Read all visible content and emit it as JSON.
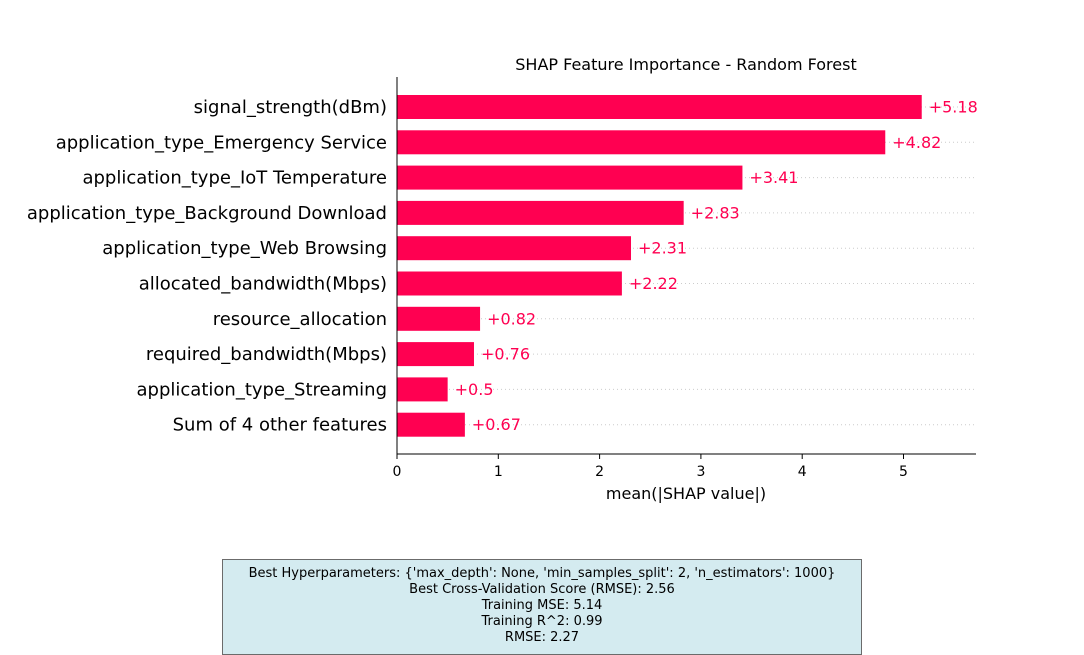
{
  "chart_data": {
    "type": "bar",
    "orientation": "horizontal",
    "title": "SHAP Feature Importance - Random Forest",
    "xlabel": "mean(|SHAP value|)",
    "ylabel": "",
    "xlim": [
      0,
      5.7
    ],
    "xticks": [
      0,
      1,
      2,
      3,
      4,
      5
    ],
    "grid": "dotted row guides",
    "bar_color": "#ff0051",
    "label_color": "#ff0051",
    "categories": [
      "signal_strength(dBm)",
      "application_type_Emergency Service",
      "application_type_IoT Temperature",
      "application_type_Background Download",
      "application_type_Web Browsing",
      "allocated_bandwidth(Mbps)",
      "resource_allocation",
      "required_bandwidth(Mbps)",
      "application_type_Streaming",
      "Sum of 4 other features"
    ],
    "values": [
      5.18,
      4.82,
      3.41,
      2.83,
      2.31,
      2.22,
      0.82,
      0.76,
      0.5,
      0.67
    ],
    "value_labels": [
      "+5.18",
      "+4.82",
      "+3.41",
      "+2.83",
      "+2.31",
      "+2.22",
      "+0.82",
      "+0.76",
      "+0.5",
      "+0.67"
    ]
  },
  "info_box": {
    "lines": [
      "Best Hyperparameters: {'max_depth': None, 'min_samples_split': 2, 'n_estimators': 1000}",
      "Best Cross-Validation Score (RMSE): 2.56",
      "Training MSE: 5.14",
      "Training R^2: 0.99",
      "RMSE: 2.27"
    ],
    "background": "#d4ebf0"
  }
}
